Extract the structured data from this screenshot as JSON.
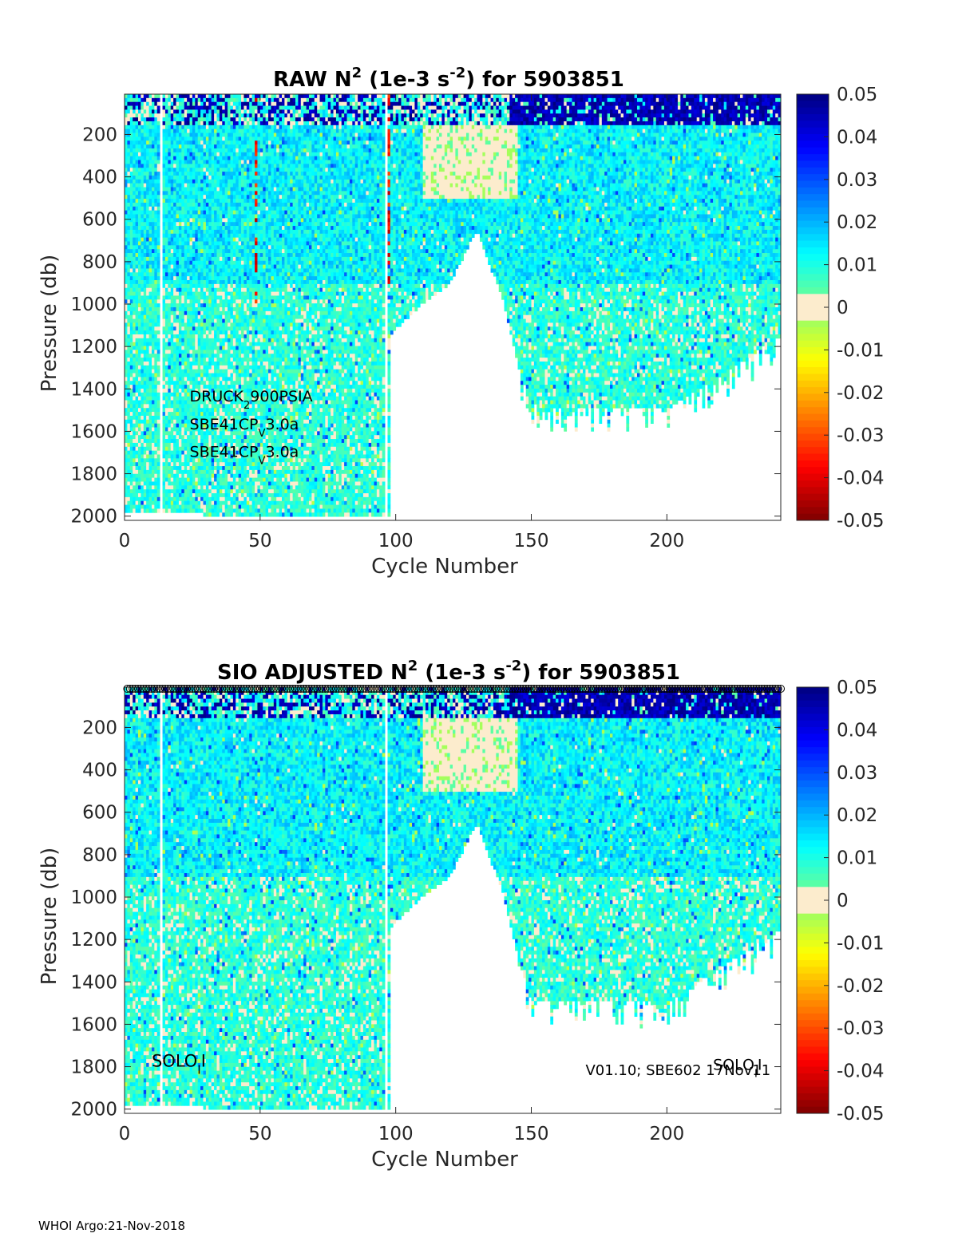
{
  "footer": "WHOI Argo:21-Nov-2018",
  "chart_data": [
    {
      "type": "heatmap",
      "title_parts": {
        "pre": "RAW N",
        "sup1": "2",
        "mid": " (1e-3 s",
        "sup2": "-2",
        "post": ") for 5903851"
      },
      "xlabel": "Cycle Number",
      "ylabel": "Pressure (db)",
      "xlim": [
        0,
        242
      ],
      "ylim": [
        2020,
        10
      ],
      "y_reversed": true,
      "xticks": [
        0,
        50,
        100,
        150,
        200
      ],
      "yticks": [
        200,
        400,
        600,
        800,
        1000,
        1200,
        1400,
        1600,
        1800,
        2000
      ],
      "colorbar": {
        "min": -0.05,
        "max": 0.05,
        "ticks": [
          0.05,
          0.04,
          0.03,
          0.02,
          0.01,
          0,
          -0.01,
          -0.02,
          -0.03,
          -0.04,
          -0.05
        ],
        "tick_labels": [
          "0.05",
          "0.04",
          "0.03",
          "0.02",
          "0.01",
          "0",
          "-0.01",
          "-0.02",
          "-0.03",
          "-0.04",
          "-0.05"
        ]
      },
      "annotations": [
        {
          "base": "DRUCK",
          "sub": "2",
          "rest": "900PSIA",
          "x": 24,
          "y": 1460
        },
        {
          "base": "SBE41CP",
          "sub": "V",
          "rest": "3.0a",
          "x": 24,
          "y": 1590
        },
        {
          "base": "SBE41CP",
          "sub": "V",
          "rest": "3.0a",
          "x": 24,
          "y": 1720
        }
      ],
      "profile_depth_summary": [
        {
          "cycle": 5,
          "max_pressure": 1990
        },
        {
          "cycle": 96,
          "max_pressure": 2000
        },
        {
          "cycle": 98,
          "max_pressure": 1140
        },
        {
          "cycle": 110,
          "max_pressure": 1000
        },
        {
          "cycle": 120,
          "max_pressure": 900
        },
        {
          "cycle": 130,
          "max_pressure": 650
        },
        {
          "cycle": 140,
          "max_pressure": 1000
        },
        {
          "cycle": 145,
          "max_pressure": 1280
        },
        {
          "cycle": 150,
          "max_pressure": 1480
        },
        {
          "cycle": 200,
          "max_pressure": 1500
        },
        {
          "cycle": 242,
          "max_pressure": 1150
        }
      ],
      "value_summary": "Positive N2 (blue, up to 0.05) concentrated above ~200 db; mostly 0 to 0.015 at depth"
    },
    {
      "type": "heatmap",
      "title_parts": {
        "pre": "SIO  ADJUSTED N",
        "sup1": "2",
        "mid": " (1e-3 s",
        "sup2": "-2",
        "post": ") for 5903851"
      },
      "xlabel": "Cycle Number",
      "ylabel": "Pressure (db)",
      "xlim": [
        0,
        242
      ],
      "ylim": [
        2020,
        10
      ],
      "y_reversed": true,
      "xticks": [
        0,
        50,
        100,
        150,
        200
      ],
      "yticks": [
        200,
        400,
        600,
        800,
        1000,
        1200,
        1400,
        1600,
        1800,
        2000
      ],
      "colorbar": {
        "min": -0.05,
        "max": 0.05,
        "ticks": [
          0.05,
          0.04,
          0.03,
          0.02,
          0.01,
          0,
          -0.01,
          -0.02,
          -0.03,
          -0.04,
          -0.05
        ],
        "tick_labels": [
          "0.05",
          "0.04",
          "0.03",
          "0.02",
          "0.01",
          "0",
          "-0.01",
          "-0.02",
          "-0.03",
          "-0.04",
          "-0.05"
        ]
      },
      "qc_marker_row": {
        "symbol": "circle",
        "cycles_from": 1,
        "cycles_to": 242
      },
      "annotations": [
        {
          "base": "SOLO",
          "sub": "I",
          "rest": "I",
          "x": 10,
          "y": 1800,
          "size": 21
        },
        {
          "base": "SOLO",
          "sub": "I",
          "rest": "I",
          "x": 217,
          "y": 1815,
          "size": 19
        },
        {
          "base": "V01.10; SBE602 17Nov11",
          "sub": "",
          "rest": "",
          "x": 170,
          "y": 1840,
          "size": 18
        }
      ],
      "value_summary": "Same pattern as raw with outliers removed"
    }
  ]
}
